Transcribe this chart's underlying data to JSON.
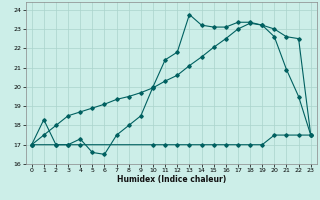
{
  "xlabel": "Humidex (Indice chaleur)",
  "background_color": "#cceee8",
  "grid_color": "#aad4cc",
  "line_color": "#006060",
  "xlim": [
    -0.5,
    23.5
  ],
  "ylim": [
    16,
    24.4
  ],
  "yticks": [
    16,
    17,
    18,
    19,
    20,
    21,
    22,
    23,
    24
  ],
  "xticks": [
    0,
    1,
    2,
    3,
    4,
    5,
    6,
    7,
    8,
    9,
    10,
    11,
    12,
    13,
    14,
    15,
    16,
    17,
    18,
    19,
    20,
    21,
    22,
    23
  ],
  "line1_x": [
    0,
    1,
    2,
    3,
    4,
    5,
    6,
    7,
    8,
    9,
    10,
    11,
    12,
    13,
    14,
    15,
    16,
    17,
    18,
    19,
    20,
    21,
    22,
    23
  ],
  "line1_y": [
    17.0,
    18.3,
    17.0,
    17.0,
    17.3,
    16.6,
    16.5,
    17.5,
    18.0,
    18.5,
    20.0,
    21.4,
    21.8,
    23.75,
    23.2,
    23.1,
    23.1,
    23.35,
    23.35,
    23.2,
    22.6,
    20.9,
    19.5,
    17.5
  ],
  "line2_x": [
    0,
    2,
    3,
    4,
    10,
    11,
    12,
    13,
    14,
    15,
    16,
    17,
    18,
    19,
    20,
    21,
    22,
    23
  ],
  "line2_y": [
    17.0,
    17.0,
    17.0,
    17.0,
    17.0,
    17.0,
    17.0,
    17.0,
    17.0,
    17.0,
    17.0,
    17.0,
    17.0,
    17.0,
    17.5,
    17.5,
    17.5,
    17.5
  ],
  "line3_x": [
    0,
    1,
    2,
    3,
    4,
    5,
    6,
    7,
    8,
    9,
    10,
    11,
    12,
    13,
    14,
    15,
    16,
    17,
    18,
    19,
    20,
    21,
    22,
    23
  ],
  "line3_y": [
    17.0,
    17.5,
    18.0,
    18.5,
    18.7,
    18.9,
    19.1,
    19.35,
    19.5,
    19.7,
    19.95,
    20.3,
    20.6,
    21.1,
    21.55,
    22.05,
    22.5,
    23.0,
    23.3,
    23.2,
    23.0,
    22.6,
    22.5,
    17.5
  ]
}
